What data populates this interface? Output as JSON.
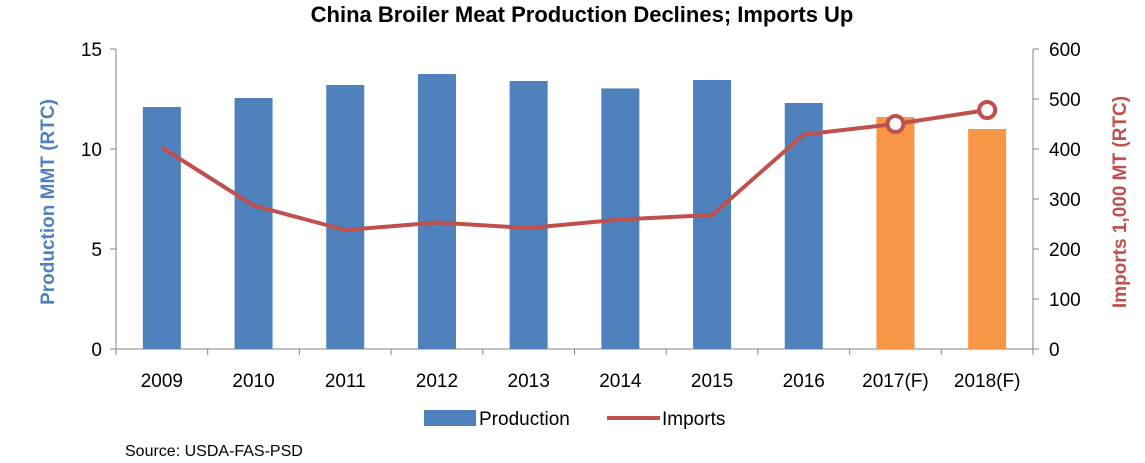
{
  "chart_data": {
    "type": "bar+line",
    "title": "China Broiler Meat Production Declines; Imports Up",
    "categories": [
      "2009",
      "2010",
      "2011",
      "2012",
      "2013",
      "2014",
      "2015",
      "2016",
      "2017(F)",
      "2018(F)"
    ],
    "series": [
      {
        "name": "Production",
        "kind": "bar",
        "axis": "left",
        "values": [
          12.1,
          12.55,
          13.2,
          13.75,
          13.4,
          13.03,
          13.45,
          12.3,
          11.6,
          11.0
        ],
        "color": "#4f81bd",
        "forecast_color": "#f79646",
        "forecast_from_index": 8
      },
      {
        "name": "Imports",
        "kind": "line",
        "axis": "right",
        "values": [
          403,
          287,
          238,
          253,
          242,
          259,
          268,
          429,
          450,
          478
        ],
        "color": "#c0504d",
        "marker_from_index": 8
      }
    ],
    "ylabel_left": "Production MMT (RTC)",
    "ylabel_right": "Imports 1,000 MT (RTC)",
    "ylim_left": [
      0,
      15
    ],
    "yticks_left": [
      0,
      5,
      10,
      15
    ],
    "ylim_right": [
      0,
      600
    ],
    "yticks_right": [
      0,
      100,
      200,
      300,
      400,
      500,
      600
    ],
    "grid": false,
    "legend_position": "bottom",
    "left_label_color": "#4f81bd",
    "right_label_color": "#c0504d"
  },
  "source": "Source: USDA-FAS-PSD"
}
